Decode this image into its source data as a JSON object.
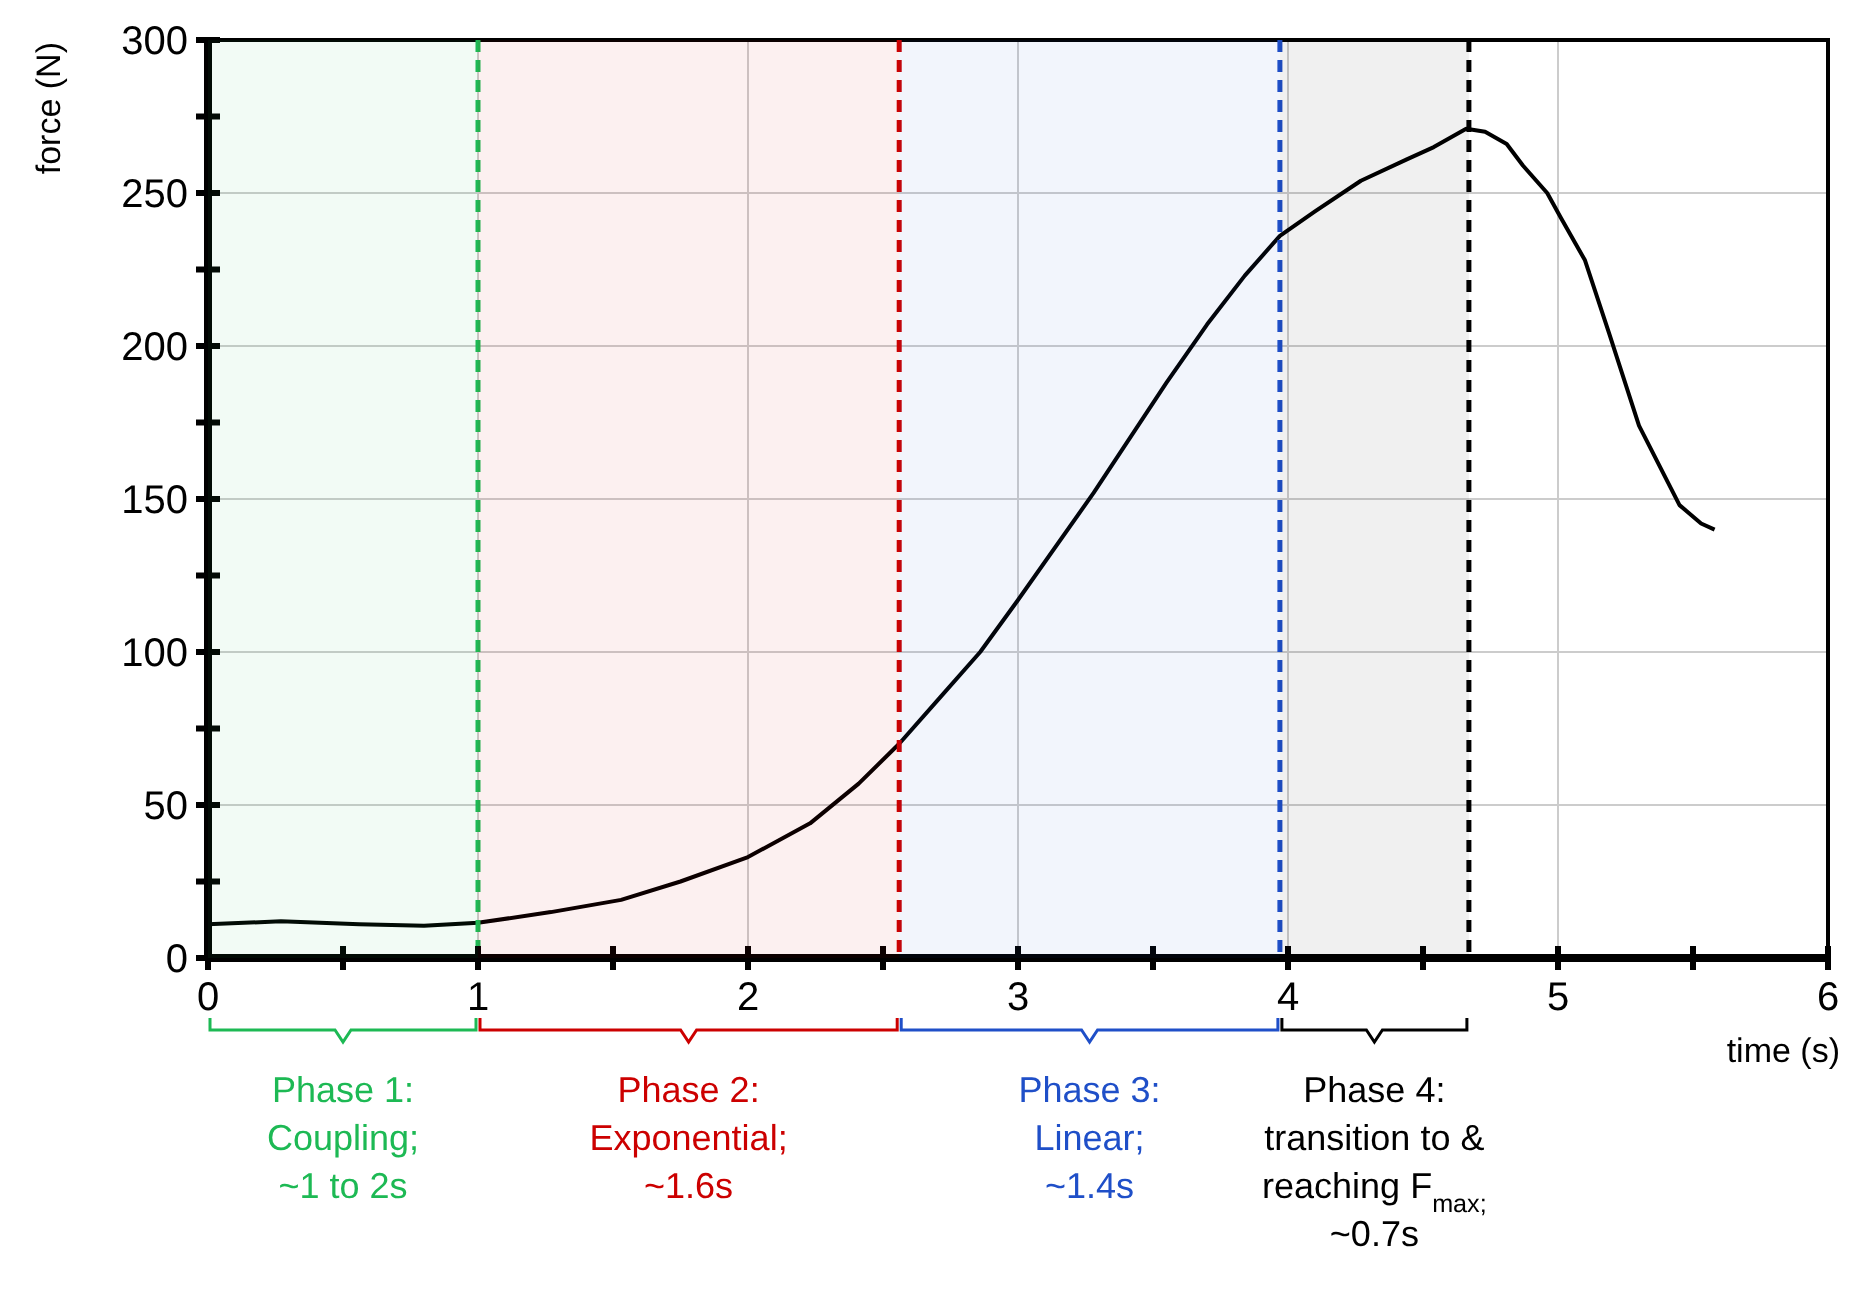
{
  "chart_data": {
    "type": "line",
    "xlabel": "time (s)",
    "ylabel": "force (N)",
    "xlim": [
      0,
      6
    ],
    "ylim": [
      0,
      300
    ],
    "xticks": [
      0,
      {
        "value": 0.5,
        "label": null
      },
      1,
      {
        "value": 1.5,
        "label": null
      },
      2,
      {
        "value": 2.5,
        "label": null
      },
      3,
      {
        "value": 3.5,
        "label": null
      },
      4,
      {
        "value": 4.5,
        "label": null
      },
      5,
      {
        "value": 5.5,
        "label": null
      },
      6
    ],
    "yticks": [
      0,
      {
        "value": 25,
        "label": null
      },
      50,
      {
        "value": 75,
        "label": null
      },
      100,
      {
        "value": 125,
        "label": null
      },
      150,
      {
        "value": 175,
        "label": null
      },
      200,
      {
        "value": 225,
        "label": null
      },
      250,
      {
        "value": 275,
        "label": null
      },
      300
    ],
    "grid": true,
    "marker": "none",
    "line_style": "solid",
    "series": [
      {
        "color": "#000000",
        "x": [
          0,
          0.27,
          0.56,
          0.8,
          1.0,
          1.27,
          1.53,
          1.75,
          2.0,
          2.23,
          2.41,
          2.56,
          2.71,
          2.86,
          3.0,
          3.28,
          3.55,
          3.7,
          3.84,
          3.97,
          4.1,
          4.27,
          4.44,
          4.54,
          4.66,
          4.73,
          4.81,
          4.87,
          4.96,
          5.01,
          5.1,
          5.19,
          5.3,
          5.45,
          5.53,
          5.58
        ],
        "values": [
          11,
          12,
          11,
          10.5,
          11.5,
          15,
          19,
          25,
          33,
          44,
          57,
          70,
          85,
          100,
          117,
          152,
          188,
          207,
          223,
          236,
          244,
          254,
          261,
          265,
          271,
          270,
          266,
          259,
          250,
          242,
          228,
          204,
          174,
          148,
          142,
          140
        ]
      }
    ],
    "ref_lines": [
      {
        "axis": "x",
        "value": 1.0,
        "color": "#1db954",
        "line_style": "dashed"
      },
      {
        "axis": "x",
        "value": 2.56,
        "color": "#cc0000",
        "line_style": "dashed"
      },
      {
        "axis": "x",
        "value": 3.97,
        "color": "#1f4fc8",
        "line_style": "dashed"
      },
      {
        "axis": "x",
        "value": 4.67,
        "color": "#000000",
        "line_style": "dashed"
      }
    ],
    "bands": [
      {
        "axis": "x",
        "from": 0,
        "to": 1.0,
        "label": "Phase 1:\nCoupling;\n~1 to 2s",
        "color": "#1db954"
      },
      {
        "axis": "x",
        "from": 1.0,
        "to": 2.56,
        "label": "Phase 2:\nExponential;\n~1.6s",
        "color": "#cc0000"
      },
      {
        "axis": "x",
        "from": 2.56,
        "to": 3.97,
        "label": "Phase 3:\nLinear;\n~1.4s",
        "color": "#1f4fc8"
      },
      {
        "axis": "x",
        "from": 3.97,
        "to": 4.67,
        "label": "Phase 4:\ntransition to &\nreaching F$_{max;}$\n~0.7s",
        "color": "#000000"
      }
    ]
  }
}
